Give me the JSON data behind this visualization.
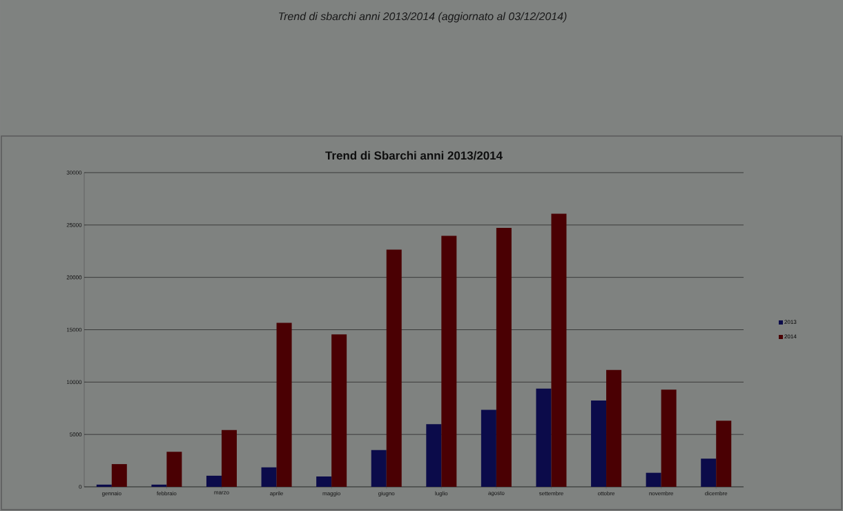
{
  "chart_data": {
    "type": "bar",
    "title": "Trend di Sbarchi anni 2013/2014",
    "annotations": [
      "Trend di sbarchi anni 2013/2014 (aggiornato al 03/12/2014)"
    ],
    "categories": [
      "gennaio",
      "febbraio",
      "marzo",
      "aprile",
      "maggio",
      "giugno",
      "luglio",
      "agosto",
      "settembre",
      "ottobre",
      "novembre",
      "dicembre"
    ],
    "series": [
      {
        "name": "2013",
        "color": "#0b0b4a",
        "values": [
          210,
          210,
          1060,
          1860,
          990,
          3510,
          5980,
          7350,
          9370,
          8240,
          1340,
          2690
        ]
      },
      {
        "name": "2014",
        "color": "#4a0003",
        "values": [
          2170,
          3340,
          5420,
          15660,
          14550,
          22650,
          23970,
          24730,
          26070,
          11160,
          9280,
          6310
        ]
      }
    ],
    "ylim": [
      0,
      30000
    ],
    "yticks": [
      0,
      5000,
      10000,
      15000,
      20000,
      25000,
      30000
    ],
    "grid": "y",
    "legend": "right"
  }
}
